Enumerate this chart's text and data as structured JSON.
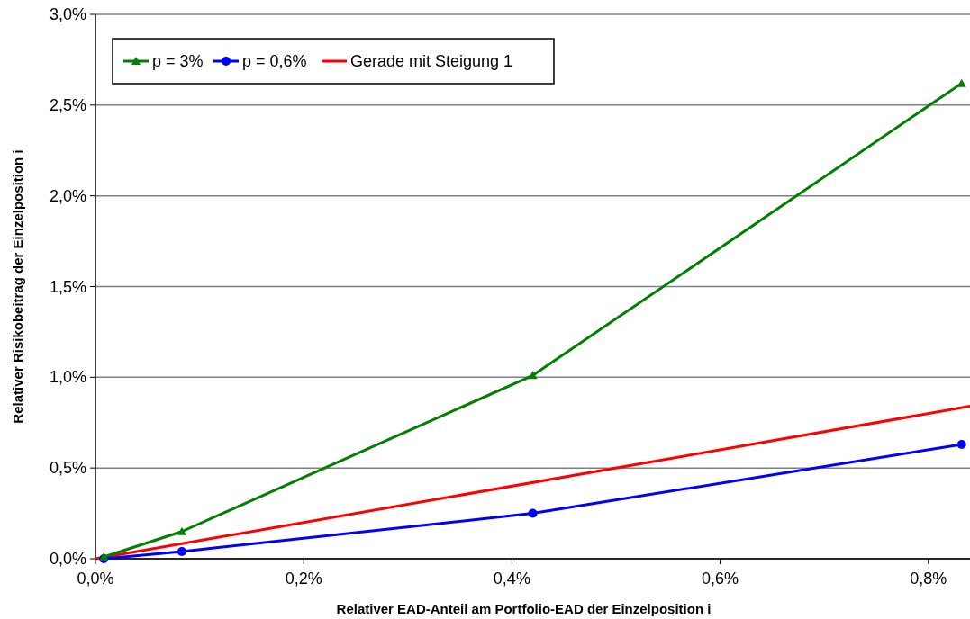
{
  "chart_data": {
    "type": "line",
    "xlabel": "Relativer EAD-Anteil am Portfolio-EAD der Einzelposition i",
    "ylabel": "Relativer Risikobeitrag der Einzelposition i",
    "xlim": [
      0,
      0.84
    ],
    "xticks": [
      {
        "value": 0,
        "label": "0,0%"
      },
      {
        "value": 0.2,
        "label": "0,2%"
      },
      {
        "value": 0.4,
        "label": "0,4%"
      },
      {
        "value": 0.6,
        "label": "0,6%"
      },
      {
        "value": 0.8,
        "label": "0,8%"
      }
    ],
    "ylim": [
      0,
      3
    ],
    "yticks": [
      {
        "value": 0,
        "label": "0,0%"
      },
      {
        "value": 0.5,
        "label": "0,5%"
      },
      {
        "value": 1,
        "label": "1,0%"
      },
      {
        "value": 1.5,
        "label": "1,5%"
      },
      {
        "value": 2,
        "label": "2,0%"
      },
      {
        "value": 2.5,
        "label": "2,5%"
      },
      {
        "value": 3,
        "label": "3,0%"
      }
    ],
    "grid": "y",
    "legend": "top left",
    "series": [
      {
        "name": "p = 3%",
        "color": "#008000",
        "marker": "triangle",
        "x": [
          0.008,
          0.083,
          0.42,
          0.832
        ],
        "values": [
          0.01,
          0.15,
          1.01,
          2.62
        ]
      },
      {
        "name": "p = 0,6%",
        "color": "#0000ff",
        "marker": "circle",
        "x": [
          0.008,
          0.083,
          0.42,
          0.832
        ],
        "values": [
          0,
          0.04,
          0.25,
          0.63
        ]
      },
      {
        "name": "Gerade mit Steigung 1",
        "color": "#ff0000",
        "marker": "none",
        "x": [
          0,
          0.84
        ],
        "values": [
          0,
          0.84
        ]
      }
    ]
  }
}
